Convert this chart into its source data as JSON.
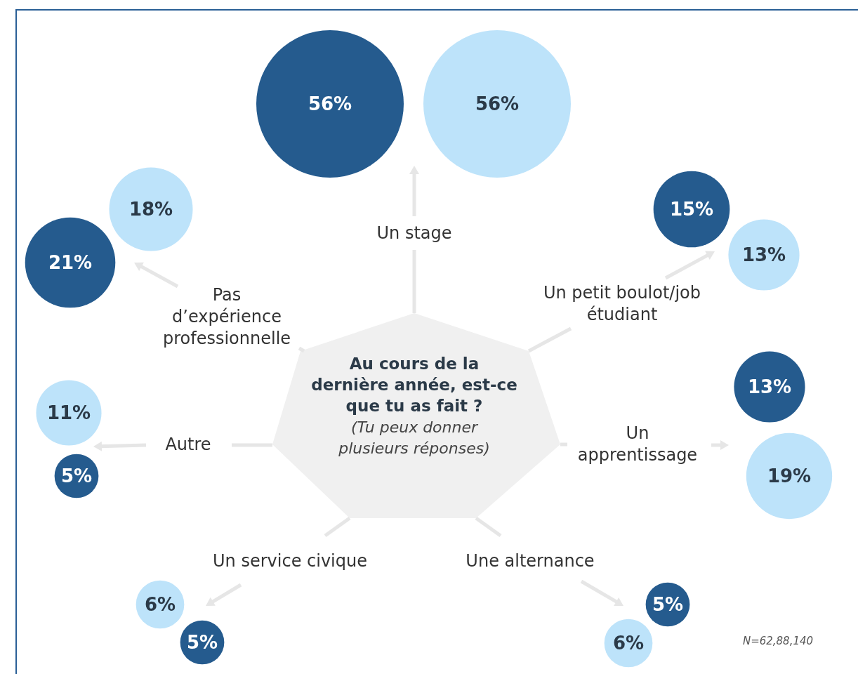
{
  "chart_data": {
    "type": "other",
    "title": "Au cours de la dernière année, est-ce que tu as fait ?",
    "subtitle": "(Tu peux donner plusieurs réponses)",
    "annotations": [
      "N=62,88,140"
    ],
    "categories": [
      "Un stage",
      "Un petit boulot/job étudiant",
      "Un apprentissage",
      "Une alternance",
      "Un service civique",
      "Autre",
      "Pas d’expérience professionnelle"
    ],
    "series": [
      {
        "color": "#255b8e",
        "values": [
          56,
          15,
          13,
          5,
          5,
          5,
          21
        ],
        "value_labels": [
          "56%",
          "15%",
          "13%",
          "5%",
          "5%",
          "5%",
          "21%"
        ]
      },
      {
        "color": "#bde3fa",
        "values": [
          56,
          13,
          19,
          6,
          6,
          11,
          18
        ],
        "value_labels": [
          "56%",
          "13%",
          "19%",
          "6%",
          "6%",
          "11%",
          "18%"
        ]
      }
    ]
  }
}
